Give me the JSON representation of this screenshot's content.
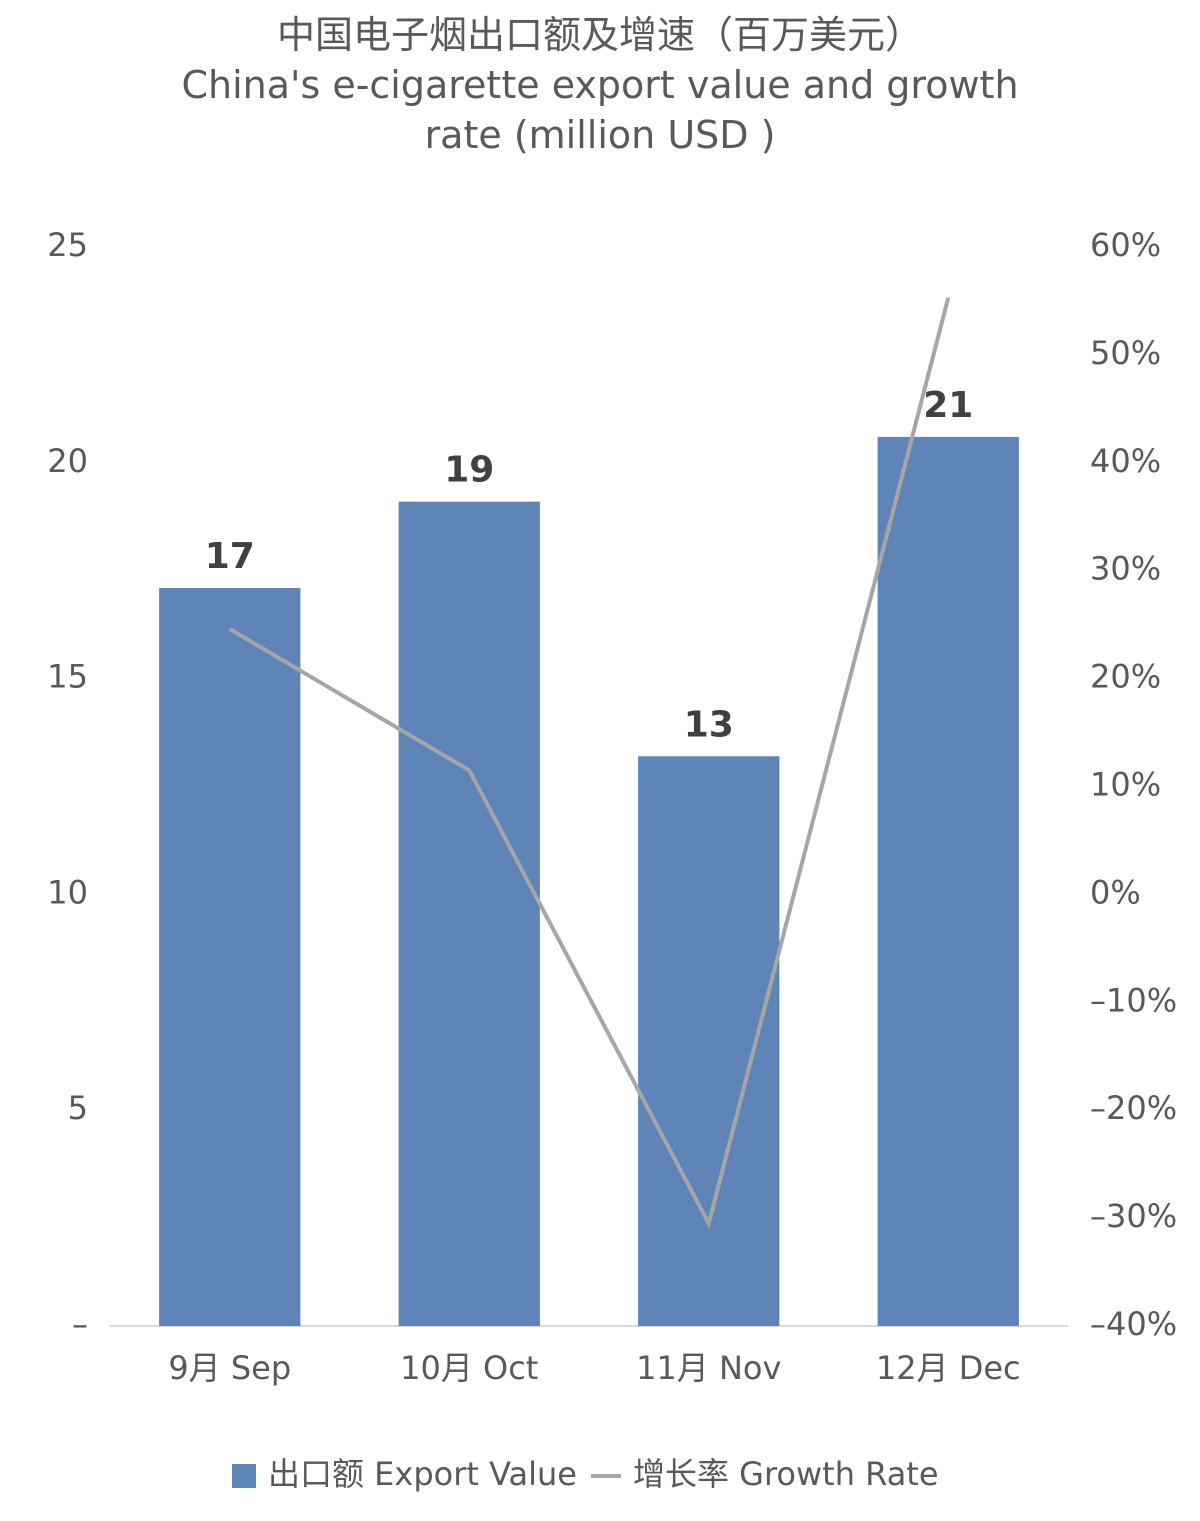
{
  "chart_data": {
    "type": "bar_line",
    "title": "中国电子烟出口额及增速（百万美元）",
    "subtitle": "China's e-cigarette export value and growth rate (million USD )",
    "categories": [
      "9月 Sep",
      "10月 Oct",
      "11月 Nov",
      "12月 Dec"
    ],
    "series": [
      {
        "name": "出口额 Export Value",
        "type": "bar",
        "color": "#5f84b8",
        "values": [
          17.1,
          19.1,
          13.2,
          20.6
        ],
        "value_labels": [
          "17",
          "19",
          "13",
          "21"
        ]
      },
      {
        "name": "增长率 Growth Rate",
        "type": "line",
        "axis": "y2",
        "color": "#a6a6a6",
        "values": [
          24.6,
          11.5,
          -30.5,
          55.3
        ]
      }
    ],
    "ylim": [
      0,
      25
    ],
    "yticks": [
      {
        "value": 0,
        "label": "–"
      },
      5,
      10,
      15,
      20,
      25
    ],
    "y2lim": [
      -40,
      60
    ],
    "y2ticks": [
      {
        "value": -40,
        "label": "–40%"
      },
      {
        "value": -30,
        "label": "–30%"
      },
      {
        "value": -20,
        "label": "–20%"
      },
      {
        "value": -10,
        "label": "–10%"
      },
      {
        "value": 0,
        "label": "0%"
      },
      {
        "value": 10,
        "label": "10%"
      },
      {
        "value": 20,
        "label": "20%"
      },
      {
        "value": 30,
        "label": "30%"
      },
      {
        "value": 40,
        "label": "40%"
      },
      {
        "value": 50,
        "label": "50%"
      },
      {
        "value": 60,
        "label": "60%"
      }
    ],
    "legend": "bottom"
  }
}
